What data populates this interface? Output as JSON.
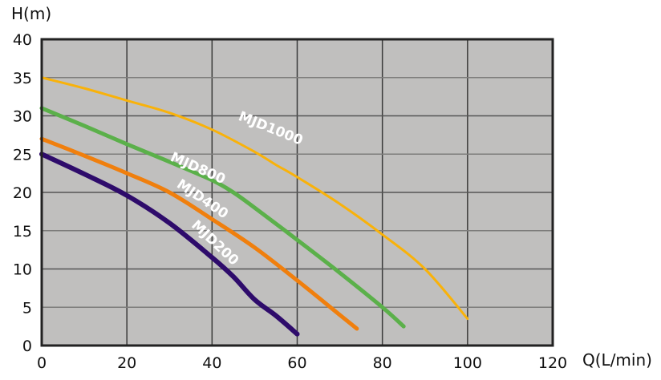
{
  "chart_data": {
    "type": "line",
    "title": "",
    "xlabel": "Q(L/min)",
    "ylabel": "H(m)",
    "xlim": [
      0,
      120
    ],
    "ylim": [
      0,
      40
    ],
    "x_ticks": [
      0,
      20,
      40,
      60,
      80,
      100,
      120
    ],
    "y_ticks": [
      0,
      5,
      10,
      15,
      20,
      25,
      30,
      35,
      40
    ],
    "grid": true,
    "legend": "inline labels on curves",
    "background": "#c0bfbe",
    "series": [
      {
        "name": "MJD1000",
        "color": "#f9b20a",
        "width": 3,
        "x": [
          0,
          10,
          20,
          30,
          40,
          50,
          55,
          60,
          70,
          80,
          90,
          100
        ],
        "y": [
          35,
          33.6,
          32,
          30.4,
          28.2,
          25.3,
          23.6,
          22,
          18.5,
          14.5,
          10,
          3.5
        ],
        "label_pos": {
          "x": 46,
          "y": 29.5,
          "angle": 22
        }
      },
      {
        "name": "MJD800",
        "color": "#5bb04a",
        "width": 5,
        "x": [
          0,
          10,
          20,
          30,
          40,
          45,
          50,
          60,
          70,
          80,
          85
        ],
        "y": [
          31,
          28.7,
          26.3,
          24,
          21.6,
          20,
          18,
          13.8,
          9.5,
          5,
          2.5
        ],
        "label_pos": {
          "x": 30,
          "y": 24.2,
          "angle": 24
        }
      },
      {
        "name": "MJD400",
        "color": "#f07f0d",
        "width": 5,
        "x": [
          0,
          10,
          20,
          30,
          40,
          50,
          60,
          70,
          74
        ],
        "y": [
          27,
          24.8,
          22.5,
          20,
          16.5,
          12.8,
          8.5,
          4,
          2.2
        ],
        "label_pos": {
          "x": 31.5,
          "y": 20.8,
          "angle": 34
        }
      },
      {
        "name": "MJD200",
        "color": "#2e0b6b",
        "width": 6,
        "x": [
          0,
          10,
          20,
          30,
          40,
          45,
          50,
          55,
          60
        ],
        "y": [
          25,
          22.4,
          19.6,
          16,
          11.5,
          9,
          6,
          3.9,
          1.5
        ],
        "label_pos": {
          "x": 35,
          "y": 15.6,
          "angle": 43
        }
      }
    ]
  }
}
